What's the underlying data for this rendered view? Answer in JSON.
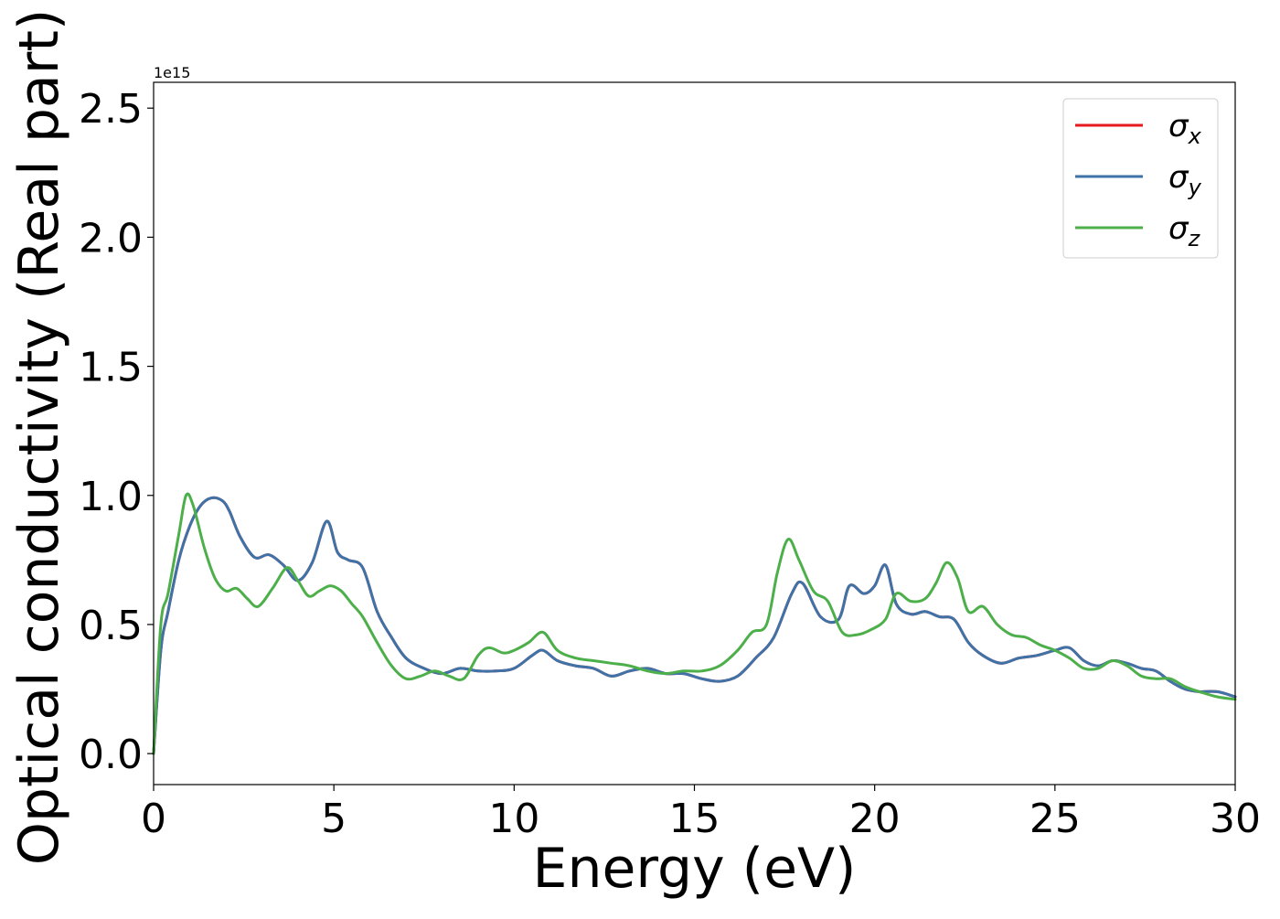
{
  "chart_data": {
    "type": "line",
    "xlabel": "Energy (eV)",
    "ylabel": "Optical conductivity (Real part)",
    "y_offset_text": "1e15",
    "xlim": [
      0,
      30
    ],
    "ylim": [
      -0.12,
      2.6
    ],
    "x_ticks": [
      0,
      5,
      10,
      15,
      20,
      25,
      30
    ],
    "x_tick_labels": [
      "0",
      "5",
      "10",
      "15",
      "20",
      "25",
      "30"
    ],
    "y_ticks": [
      0.0,
      0.5,
      1.0,
      1.5,
      2.0,
      2.5
    ],
    "y_tick_labels": [
      "0.0",
      "0.5",
      "1.0",
      "1.5",
      "2.0",
      "2.5"
    ],
    "grid": false,
    "legend_position": "top-right",
    "series": [
      {
        "name": "σ",
        "sub": "x",
        "color": "#e41a1c",
        "x": [
          0,
          0.2,
          0.4,
          0.7,
          1.0,
          1.3,
          1.6,
          1.9,
          2.1,
          2.4,
          2.8,
          3.2,
          3.6,
          4.0,
          4.4,
          4.8,
          5.1,
          5.4,
          5.8,
          6.2,
          6.6,
          7.0,
          7.5,
          8.0,
          8.5,
          9.0,
          9.5,
          10.0,
          10.5,
          10.8,
          11.2,
          11.7,
          12.2,
          12.7,
          13.2,
          13.7,
          14.2,
          14.7,
          15.2,
          15.7,
          16.2,
          16.7,
          17.2,
          17.7,
          18.0,
          18.5,
          19.0,
          19.3,
          19.7,
          20.0,
          20.3,
          20.6,
          21.0,
          21.4,
          21.8,
          22.2,
          22.6,
          23.0,
          23.5,
          24.0,
          24.5,
          25.0,
          25.4,
          25.8,
          26.2,
          26.6,
          27.0,
          27.4,
          27.8,
          28.2,
          28.6,
          29.0,
          29.5,
          30.0
        ],
        "values": [
          0.0,
          0.4,
          0.55,
          0.75,
          0.88,
          0.96,
          0.99,
          0.98,
          0.94,
          0.84,
          0.76,
          0.77,
          0.73,
          0.67,
          0.74,
          0.9,
          0.78,
          0.75,
          0.72,
          0.55,
          0.45,
          0.37,
          0.33,
          0.31,
          0.33,
          0.32,
          0.32,
          0.33,
          0.38,
          0.4,
          0.36,
          0.34,
          0.33,
          0.3,
          0.32,
          0.33,
          0.31,
          0.31,
          0.29,
          0.28,
          0.3,
          0.37,
          0.45,
          0.62,
          0.66,
          0.53,
          0.52,
          0.65,
          0.62,
          0.65,
          0.73,
          0.58,
          0.54,
          0.55,
          0.53,
          0.52,
          0.43,
          0.38,
          0.35,
          0.37,
          0.38,
          0.4,
          0.41,
          0.36,
          0.34,
          0.36,
          0.35,
          0.33,
          0.32,
          0.28,
          0.25,
          0.24,
          0.24,
          0.22
        ]
      },
      {
        "name": "σ",
        "sub": "y",
        "color": "#3f73a8",
        "x": [
          0,
          0.2,
          0.4,
          0.7,
          1.0,
          1.3,
          1.6,
          1.9,
          2.1,
          2.4,
          2.8,
          3.2,
          3.6,
          4.0,
          4.4,
          4.8,
          5.1,
          5.4,
          5.8,
          6.2,
          6.6,
          7.0,
          7.5,
          8.0,
          8.5,
          9.0,
          9.5,
          10.0,
          10.5,
          10.8,
          11.2,
          11.7,
          12.2,
          12.7,
          13.2,
          13.7,
          14.2,
          14.7,
          15.2,
          15.7,
          16.2,
          16.7,
          17.2,
          17.7,
          18.0,
          18.5,
          19.0,
          19.3,
          19.7,
          20.0,
          20.3,
          20.6,
          21.0,
          21.4,
          21.8,
          22.2,
          22.6,
          23.0,
          23.5,
          24.0,
          24.5,
          25.0,
          25.4,
          25.8,
          26.2,
          26.6,
          27.0,
          27.4,
          27.8,
          28.2,
          28.6,
          29.0,
          29.5,
          30.0
        ],
        "values": [
          0.0,
          0.4,
          0.55,
          0.75,
          0.88,
          0.96,
          0.99,
          0.98,
          0.94,
          0.84,
          0.76,
          0.77,
          0.73,
          0.67,
          0.74,
          0.9,
          0.78,
          0.75,
          0.72,
          0.55,
          0.45,
          0.37,
          0.33,
          0.31,
          0.33,
          0.32,
          0.32,
          0.33,
          0.38,
          0.4,
          0.36,
          0.34,
          0.33,
          0.3,
          0.32,
          0.33,
          0.31,
          0.31,
          0.29,
          0.28,
          0.3,
          0.37,
          0.45,
          0.62,
          0.66,
          0.53,
          0.52,
          0.65,
          0.62,
          0.65,
          0.73,
          0.58,
          0.54,
          0.55,
          0.53,
          0.52,
          0.43,
          0.38,
          0.35,
          0.37,
          0.38,
          0.4,
          0.41,
          0.36,
          0.34,
          0.36,
          0.35,
          0.33,
          0.32,
          0.28,
          0.25,
          0.24,
          0.24,
          0.22
        ]
      },
      {
        "name": "σ",
        "sub": "z",
        "color": "#4daf4a",
        "x": [
          0,
          0.2,
          0.4,
          0.7,
          0.9,
          1.1,
          1.4,
          1.7,
          2.0,
          2.3,
          2.6,
          2.9,
          3.3,
          3.7,
          4.0,
          4.3,
          4.6,
          4.9,
          5.2,
          5.5,
          5.8,
          6.2,
          6.6,
          7.0,
          7.4,
          7.8,
          8.2,
          8.6,
          9.0,
          9.3,
          9.7,
          10.0,
          10.4,
          10.8,
          11.2,
          11.7,
          12.2,
          12.7,
          13.2,
          13.7,
          14.2,
          14.7,
          15.2,
          15.7,
          16.2,
          16.6,
          17.0,
          17.3,
          17.6,
          17.9,
          18.3,
          18.7,
          19.1,
          19.5,
          19.9,
          20.3,
          20.6,
          21.0,
          21.4,
          21.7,
          22.0,
          22.3,
          22.6,
          23.0,
          23.4,
          23.8,
          24.2,
          24.6,
          25.0,
          25.4,
          25.8,
          26.2,
          26.6,
          27.0,
          27.4,
          27.8,
          28.2,
          28.6,
          29.0,
          29.5,
          30.0
        ],
        "values": [
          0.0,
          0.5,
          0.62,
          0.85,
          1.0,
          0.96,
          0.8,
          0.68,
          0.63,
          0.64,
          0.6,
          0.57,
          0.64,
          0.72,
          0.67,
          0.61,
          0.63,
          0.65,
          0.63,
          0.58,
          0.53,
          0.43,
          0.34,
          0.29,
          0.3,
          0.32,
          0.3,
          0.29,
          0.38,
          0.41,
          0.39,
          0.4,
          0.43,
          0.47,
          0.4,
          0.37,
          0.36,
          0.35,
          0.34,
          0.32,
          0.31,
          0.32,
          0.32,
          0.34,
          0.4,
          0.47,
          0.5,
          0.7,
          0.83,
          0.75,
          0.63,
          0.59,
          0.47,
          0.46,
          0.48,
          0.52,
          0.62,
          0.59,
          0.6,
          0.66,
          0.74,
          0.68,
          0.55,
          0.57,
          0.5,
          0.46,
          0.45,
          0.42,
          0.4,
          0.37,
          0.33,
          0.33,
          0.36,
          0.34,
          0.3,
          0.29,
          0.29,
          0.26,
          0.24,
          0.22,
          0.21
        ]
      }
    ]
  }
}
